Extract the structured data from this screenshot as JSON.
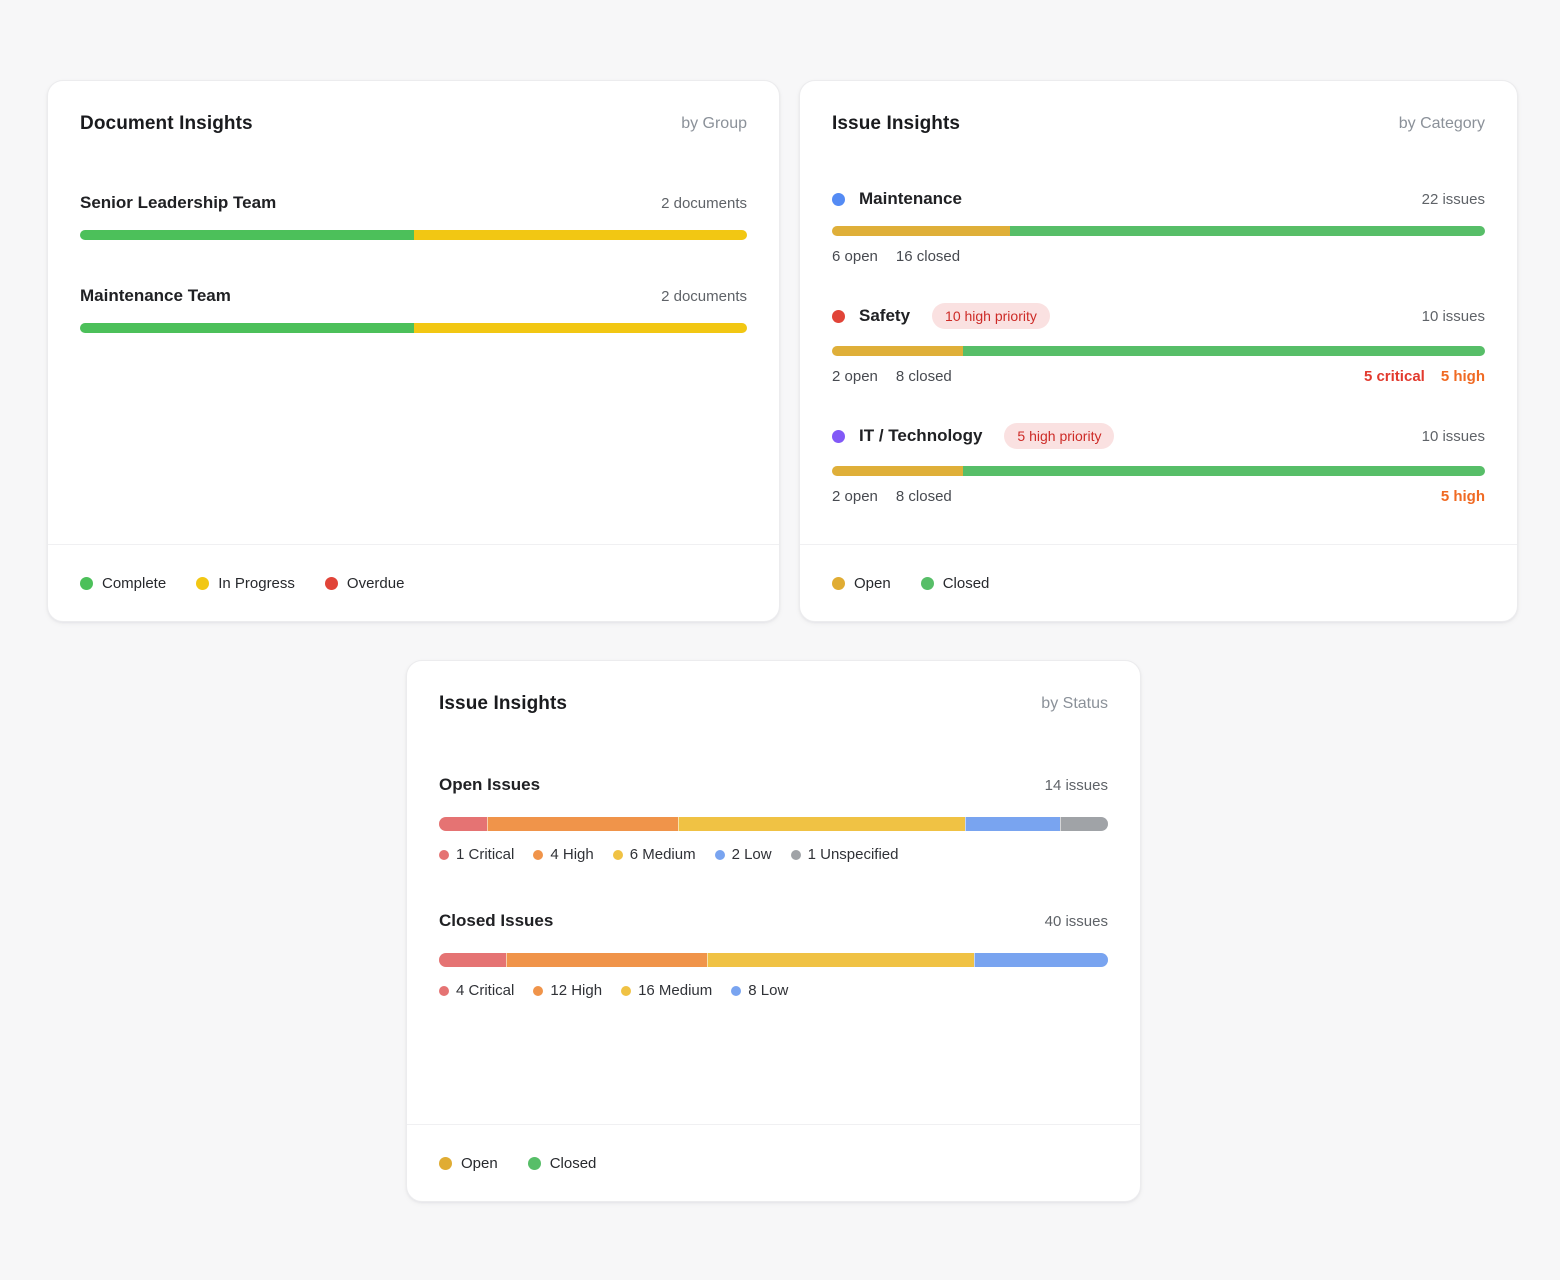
{
  "page": {
    "background": "#f7f7f8"
  },
  "colors": {
    "complete_green": "#4CC05A",
    "in_progress_yellow": "#F2C713",
    "overdue_red": "#E14438",
    "open_gold": "#DFAF39",
    "closed_green": "#57BE68",
    "critical_red_text": "#E23A2E",
    "high_orange_text": "#F06A23",
    "badge_bg": "#FAE1E1",
    "badge_text": "#CD2B27"
  },
  "cards": {
    "documents": {
      "title": "Document Insights",
      "subtitle": "by Group",
      "rows": [
        {
          "name": "Senior Leadership Team",
          "count_label": "2 documents",
          "segments": [
            {
              "name": "complete",
              "label": "Complete",
              "value": 1,
              "color": "#4CC05A"
            },
            {
              "name": "in-progress",
              "label": "In Progress",
              "value": 1,
              "color": "#F2C713"
            }
          ]
        },
        {
          "name": "Maintenance Team",
          "count_label": "2 documents",
          "segments": [
            {
              "name": "complete",
              "label": "Complete",
              "value": 1,
              "color": "#4CC05A"
            },
            {
              "name": "in-progress",
              "label": "In Progress",
              "value": 1,
              "color": "#F2C713"
            }
          ]
        }
      ],
      "legend": [
        {
          "label": "Complete",
          "color": "#4CC05A"
        },
        {
          "label": "In Progress",
          "color": "#F2C713"
        },
        {
          "label": "Overdue",
          "color": "#E14438"
        }
      ]
    },
    "issues_by_category": {
      "title": "Issue Insights",
      "subtitle": "by Category",
      "rows": [
        {
          "dot_color": "#548BF4",
          "name": "Maintenance",
          "badge": "",
          "count_label": "22 issues",
          "open_label": "6 open",
          "closed_label": "16 closed",
          "segments": [
            {
              "name": "open",
              "label": "Open",
              "value": 6,
              "color": "#DFAF39"
            },
            {
              "name": "closed",
              "label": "Closed",
              "value": 16,
              "color": "#57BE68"
            }
          ],
          "right_labels": []
        },
        {
          "dot_color": "#E14438",
          "name": "Safety",
          "badge": "10 high priority",
          "count_label": "10 issues",
          "open_label": "2 open",
          "closed_label": "8 closed",
          "segments": [
            {
              "name": "open",
              "label": "Open",
              "value": 2,
              "color": "#DFAF39"
            },
            {
              "name": "closed",
              "label": "Closed",
              "value": 8,
              "color": "#57BE68"
            }
          ],
          "right_labels": [
            {
              "text": "5 critical",
              "color": "#E23A2E"
            },
            {
              "text": "5 high",
              "color": "#F06A23"
            }
          ]
        },
        {
          "dot_color": "#8259F7",
          "name": "IT / Technology",
          "badge": "5 high priority",
          "count_label": "10 issues",
          "open_label": "2 open",
          "closed_label": "8 closed",
          "segments": [
            {
              "name": "open",
              "label": "Open",
              "value": 2,
              "color": "#DFAF39"
            },
            {
              "name": "closed",
              "label": "Closed",
              "value": 8,
              "color": "#57BE68"
            }
          ],
          "right_labels": [
            {
              "text": "5 high",
              "color": "#F06A23"
            }
          ]
        }
      ],
      "legend": [
        {
          "label": "Open",
          "color": "#E0AC33"
        },
        {
          "label": "Closed",
          "color": "#57BE68"
        }
      ]
    },
    "issues_by_status": {
      "title": "Issue Insights",
      "subtitle": "by Status",
      "sections": [
        {
          "name": "Open Issues",
          "count_label": "14 issues",
          "segments": [
            {
              "name": "critical",
              "label": "1 Critical",
              "value": 1,
              "color": "#E57373"
            },
            {
              "name": "high",
              "label": "4 High",
              "value": 4,
              "color": "#F0944A"
            },
            {
              "name": "medium",
              "label": "6 Medium",
              "value": 6,
              "color": "#F0C244"
            },
            {
              "name": "low",
              "label": "2 Low",
              "value": 2,
              "color": "#79A4F0"
            },
            {
              "name": "unspecified",
              "label": "1 Unspecified",
              "value": 1,
              "color": "#A0A3A7"
            }
          ]
        },
        {
          "name": "Closed Issues",
          "count_label": "40 issues",
          "segments": [
            {
              "name": "critical",
              "label": "4 Critical",
              "value": 4,
              "color": "#E57373"
            },
            {
              "name": "high",
              "label": "12 High",
              "value": 12,
              "color": "#F0944A"
            },
            {
              "name": "medium",
              "label": "16 Medium",
              "value": 16,
              "color": "#F0C244"
            },
            {
              "name": "low",
              "label": "8 Low",
              "value": 8,
              "color": "#79A4F0"
            }
          ]
        }
      ],
      "legend": [
        {
          "label": "Open",
          "color": "#E0AC33"
        },
        {
          "label": "Closed",
          "color": "#57BE68"
        }
      ]
    }
  },
  "chart_data": [
    {
      "type": "bar",
      "title": "Document Insights",
      "subtitle": "by Group",
      "orientation": "horizontal-stacked",
      "categories": [
        "Senior Leadership Team",
        "Maintenance Team"
      ],
      "category_totals_label": [
        "2 documents",
        "2 documents"
      ],
      "series": [
        {
          "name": "Complete",
          "values": [
            1,
            1
          ]
        },
        {
          "name": "In Progress",
          "values": [
            1,
            1
          ]
        },
        {
          "name": "Overdue",
          "values": [
            0,
            0
          ]
        }
      ],
      "legend": [
        "Complete",
        "In Progress",
        "Overdue"
      ],
      "legend_position": "bottom"
    },
    {
      "type": "bar",
      "title": "Issue Insights",
      "subtitle": "by Category",
      "orientation": "horizontal-stacked",
      "categories": [
        "Maintenance",
        "Safety",
        "IT / Technology"
      ],
      "category_totals_label": [
        "22 issues",
        "10 issues",
        "10 issues"
      ],
      "series": [
        {
          "name": "Open",
          "values": [
            6,
            2,
            2
          ]
        },
        {
          "name": "Closed",
          "values": [
            16,
            8,
            8
          ]
        }
      ],
      "badges": [
        "",
        "10 high priority",
        "5 high priority"
      ],
      "annotations": [
        [],
        [
          "5 critical",
          "5 high"
        ],
        [
          "5 high"
        ]
      ],
      "legend": [
        "Open",
        "Closed"
      ],
      "legend_position": "bottom"
    },
    {
      "type": "bar",
      "title": "Issue Insights",
      "subtitle": "by Status",
      "orientation": "horizontal-stacked",
      "categories": [
        "Open Issues",
        "Closed Issues"
      ],
      "category_totals_label": [
        "14 issues",
        "40 issues"
      ],
      "series": [
        {
          "name": "Critical",
          "values": [
            1,
            4
          ]
        },
        {
          "name": "High",
          "values": [
            4,
            12
          ]
        },
        {
          "name": "Medium",
          "values": [
            6,
            16
          ]
        },
        {
          "name": "Low",
          "values": [
            2,
            8
          ]
        },
        {
          "name": "Unspecified",
          "values": [
            1,
            0
          ]
        }
      ],
      "legend": [
        "Open",
        "Closed"
      ],
      "legend_position": "bottom"
    }
  ]
}
